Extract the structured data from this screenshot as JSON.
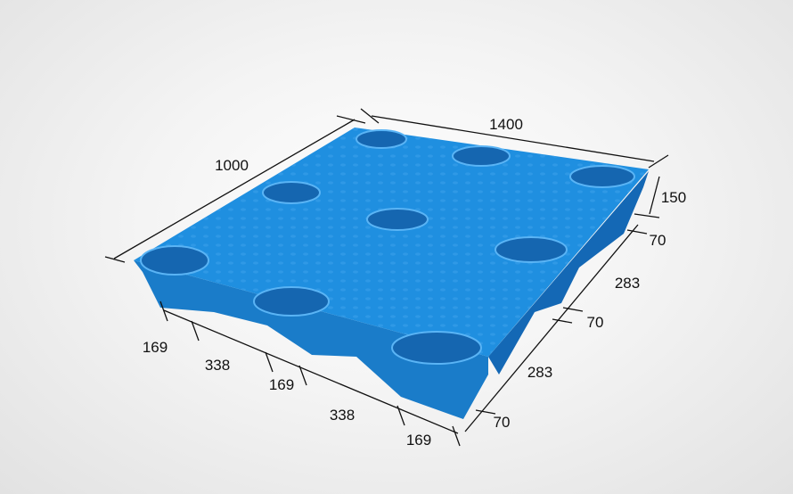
{
  "colors": {
    "pallet": "#1f8fe0",
    "pallet_dark": "#1468b5",
    "pallet_side": "#1a7cc9",
    "annotation": "#111111"
  },
  "dimensions": {
    "length": "1400",
    "width": "1000",
    "height": "150",
    "right_side": [
      "70",
      "283",
      "70",
      "283",
      "70"
    ],
    "front_side": [
      "169",
      "338",
      "169",
      "338",
      "169"
    ]
  }
}
